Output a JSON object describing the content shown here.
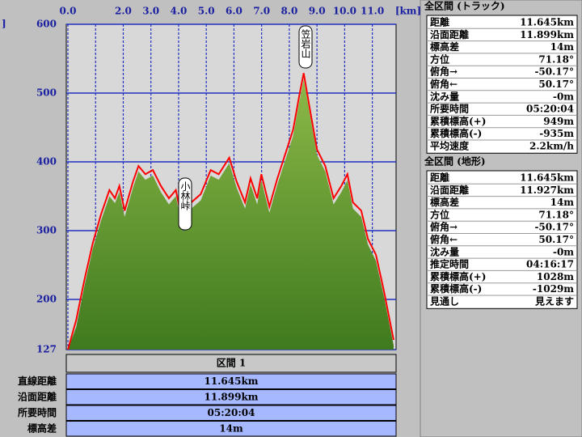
{
  "chart_data": {
    "type": "area",
    "x_label": "[km]",
    "y_label": "]",
    "annotations": [
      "笠岩山",
      "小林峠"
    ],
    "x": [
      0,
      0.3,
      0.6,
      0.9,
      1.2,
      1.5,
      1.7,
      1.86,
      2.05,
      2.35,
      2.55,
      2.8,
      3.07,
      3.36,
      3.65,
      3.9,
      4.17,
      4.46,
      4.8,
      5.16,
      5.45,
      5.83,
      6.1,
      6.4,
      6.6,
      6.84,
      6.99,
      7.28,
      7.57,
      7.86,
      8.14,
      8.35,
      8.52,
      8.72,
      9.0,
      9.3,
      9.6,
      9.88,
      10.1,
      10.3,
      10.6,
      10.84,
      11.13,
      11.42,
      11.77
    ],
    "series": [
      {
        "color": "#ff0000",
        "values": [
          127,
          170,
          229,
          282,
          324,
          359,
          347,
          365,
          329,
          371,
          394,
          382,
          388,
          365,
          347,
          359,
          306,
          341,
          353,
          388,
          382,
          406,
          371,
          341,
          376,
          347,
          382,
          335,
          376,
          412,
          447,
          494,
          529,
          482,
          418,
          394,
          347,
          365,
          382,
          341,
          329,
          288,
          265,
          212,
          141
        ]
      },
      {
        "color": "#5a8c2a",
        "values": [
          127,
          160,
          220,
          274,
          315,
          350,
          340,
          356,
          320,
          362,
          386,
          374,
          380,
          356,
          338,
          350,
          298,
          332,
          344,
          380,
          374,
          398,
          362,
          332,
          367,
          338,
          373,
          326,
          367,
          403,
          438,
          485,
          520,
          474,
          410,
          386,
          338,
          356,
          373,
          332,
          320,
          280,
          256,
          204,
          133
        ]
      }
    ],
    "xlim": [
      0,
      11.8
    ],
    "ylim": [
      127,
      600
    ],
    "xticks": [
      {
        "value": 0,
        "label": "0.0"
      },
      {
        "value": 1,
        "label": null
      },
      {
        "value": 2,
        "label": "2.0"
      },
      {
        "value": 3,
        "label": "3.0"
      },
      {
        "value": 4,
        "label": "4.0"
      },
      {
        "value": 5,
        "label": "5.0"
      },
      {
        "value": 6,
        "label": "6.0"
      },
      {
        "value": 7,
        "label": "7.0"
      },
      {
        "value": 8,
        "label": "8.0"
      },
      {
        "value": 9,
        "label": "9.0"
      },
      {
        "value": 10,
        "label": "10.0"
      },
      {
        "value": 11,
        "label": "11.0"
      }
    ],
    "yticks": [
      127,
      200,
      300,
      400,
      500,
      600
    ],
    "grid": true
  },
  "section_table": {
    "header": "区間 1",
    "rows": [
      [
        "直線距離",
        "11.645km"
      ],
      [
        "沿面距離",
        "11.899km"
      ],
      [
        "所要時間",
        "05:20:04"
      ],
      [
        "標高差",
        "14m"
      ]
    ]
  },
  "track_panel": {
    "title": "全区間 (トラック)",
    "rows": [
      [
        "距離",
        "11.645km"
      ],
      [
        "沿面距離",
        "11.899km"
      ],
      [
        "標高差",
        "14m"
      ],
      [
        "方位",
        "71.18°"
      ],
      [
        "俯角→",
        "-50.17°"
      ],
      [
        "俯角←",
        "50.17°"
      ],
      [
        "沈み量",
        "-0m"
      ],
      [
        "所要時間",
        "05:20:04"
      ],
      [
        "累積標高(+)",
        "949m"
      ],
      [
        "累積標高(-)",
        "-935m"
      ],
      [
        "平均速度",
        "2.2km/h"
      ]
    ]
  },
  "terrain_panel": {
    "title": "全区間 (地形)",
    "rows": [
      [
        "距離",
        "11.645km"
      ],
      [
        "沿面距離",
        "11.927km"
      ],
      [
        "標高差",
        "14m"
      ],
      [
        "方位",
        "71.18°"
      ],
      [
        "俯角→",
        "-50.17°"
      ],
      [
        "俯角←",
        "50.17°"
      ],
      [
        "沈み量",
        "-0m"
      ],
      [
        "推定時間",
        "04:16:17"
      ],
      [
        "累積標高(+)",
        "1028m"
      ],
      [
        "累積標高(-)",
        "-1029m"
      ],
      [
        "見通し",
        "見えます"
      ]
    ]
  }
}
